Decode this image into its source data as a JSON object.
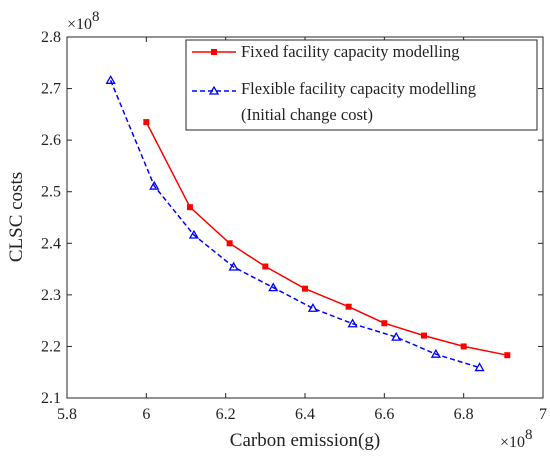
{
  "chart_data": {
    "type": "line",
    "xlabel": "Carbon emission(g)",
    "ylabel": "CLSC costs",
    "x_multiplier": "×10",
    "x_exponent": "8",
    "y_multiplier": "×10",
    "y_exponent": "8",
    "xlim": [
      5.8,
      7.0
    ],
    "ylim": [
      2.1,
      2.8
    ],
    "x_ticks": [
      5.8,
      6.0,
      6.2,
      6.4,
      6.6,
      6.8,
      7.0
    ],
    "x_tick_labels": [
      "5.8",
      "6",
      "6.2",
      "6.4",
      "6.6",
      "6.8",
      "7"
    ],
    "y_ticks": [
      2.1,
      2.2,
      2.3,
      2.4,
      2.5,
      2.6,
      2.7,
      2.8
    ],
    "y_tick_labels": [
      "2.1",
      "2.2",
      "2.3",
      "2.4",
      "2.5",
      "2.6",
      "2.7",
      "2.8"
    ],
    "grid": false,
    "legend_position": "top-right",
    "series": [
      {
        "name": "Fixed facility capacity modelling",
        "color": "#ff0000",
        "line_style": "solid",
        "marker": "square",
        "x": [
          6.0,
          6.11,
          6.21,
          6.3,
          6.4,
          6.51,
          6.6,
          6.7,
          6.8,
          6.91
        ],
        "y": [
          2.635,
          2.47,
          2.4,
          2.355,
          2.312,
          2.277,
          2.245,
          2.221,
          2.2,
          2.183
        ]
      },
      {
        "name": "Flexible facility capacity modelling",
        "name_line2": "(Initial change cost)",
        "color": "#0000ff",
        "line_style": "dashed",
        "marker": "triangle",
        "x": [
          5.91,
          6.02,
          6.12,
          6.22,
          6.32,
          6.42,
          6.52,
          6.63,
          6.73,
          6.84
        ],
        "y": [
          2.716,
          2.511,
          2.416,
          2.354,
          2.314,
          2.274,
          2.244,
          2.218,
          2.185,
          2.159
        ]
      }
    ]
  }
}
